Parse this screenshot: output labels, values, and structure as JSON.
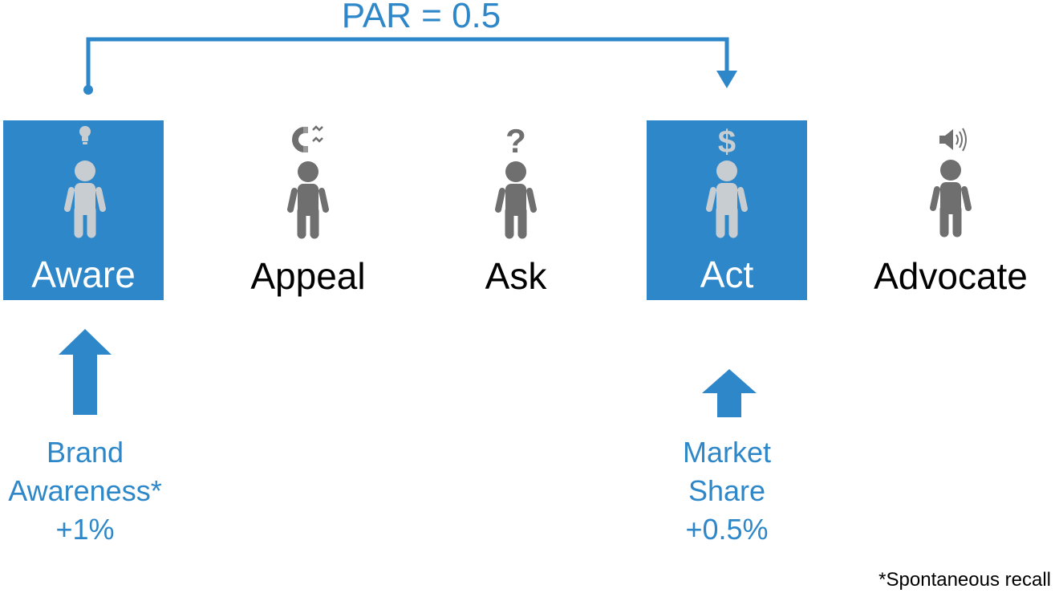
{
  "colors": {
    "accent": "#2d87c8",
    "person_on_accent": "#c8cdd2",
    "person_default": "#6f6f70",
    "text": "#000000"
  },
  "header": {
    "par_label": "PAR = 0.5"
  },
  "stages": [
    {
      "label": "Aware",
      "icon": "lightbulb-icon",
      "highlighted": true
    },
    {
      "label": "Appeal",
      "icon": "magnet-icon",
      "highlighted": false
    },
    {
      "label": "Ask",
      "icon": "question-mark-icon",
      "highlighted": false
    },
    {
      "label": "Act",
      "icon": "dollar-icon",
      "highlighted": true
    },
    {
      "label": "Advocate",
      "icon": "speaker-icon",
      "highlighted": false
    }
  ],
  "metrics": {
    "brand_awareness": {
      "line1": "Brand",
      "line2": "Awareness*",
      "line3": "+1%"
    },
    "market_share": {
      "line1": "Market",
      "line2": "Share",
      "line3": "+0.5%"
    }
  },
  "footnote": "*Spontaneous recall",
  "dollar_glyph": "$",
  "question_glyph": "?"
}
